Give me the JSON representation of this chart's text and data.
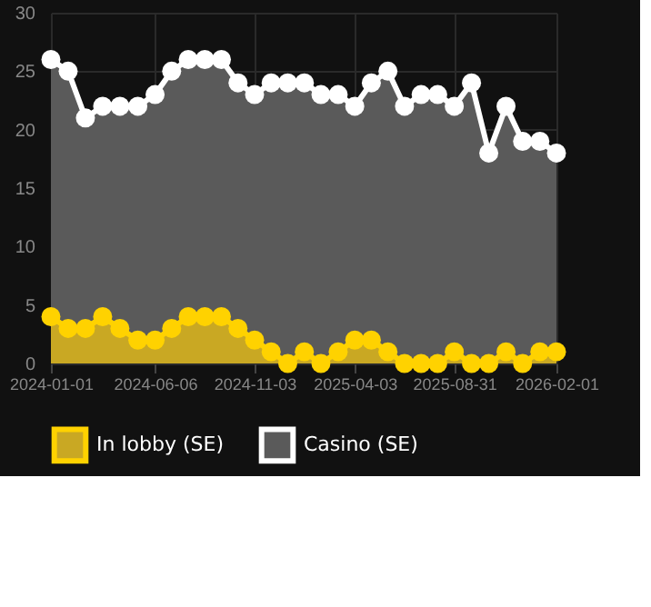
{
  "chart_data": {
    "type": "area",
    "x": [
      "2024-01-01",
      "2024-01-27",
      "2024-02-22",
      "2024-03-19",
      "2024-04-14",
      "2024-05-11",
      "2024-06-06",
      "2024-07-01",
      "2024-07-26",
      "2024-08-20",
      "2024-09-14",
      "2024-10-09",
      "2024-11-03",
      "2024-11-28",
      "2024-12-23",
      "2025-01-17",
      "2025-02-11",
      "2025-03-09",
      "2025-04-03",
      "2025-04-28",
      "2025-05-23",
      "2025-06-17",
      "2025-07-12",
      "2025-08-06",
      "2025-08-31",
      "2025-09-26",
      "2025-10-22",
      "2025-11-17",
      "2025-12-12",
      "2026-01-07",
      "2026-02-01"
    ],
    "series": [
      {
        "name": "In lobby (SE)",
        "color": "#ffd200",
        "values": [
          4,
          3,
          3,
          4,
          3,
          2,
          2,
          3,
          4,
          4,
          4,
          3,
          2,
          1,
          0,
          1,
          0,
          1,
          2,
          2,
          1,
          0,
          0,
          0,
          1,
          0,
          0,
          1,
          0,
          1,
          1
        ]
      },
      {
        "name": "Casino (SE)",
        "color": "#ffffff",
        "values": [
          26,
          25,
          21,
          22,
          22,
          22,
          23,
          25,
          26,
          26,
          26,
          24,
          23,
          24,
          24,
          24,
          23,
          23,
          22,
          24,
          25,
          22,
          23,
          23,
          22,
          24,
          18,
          22,
          19,
          19,
          18
        ]
      }
    ],
    "xlim": [
      "2024-01-01",
      "2026-02-01"
    ],
    "xticks": [
      "2024-01-01",
      "2024-06-06",
      "2024-11-03",
      "2025-04-03",
      "2025-08-31",
      "2026-02-01"
    ],
    "ylim": [
      0,
      30
    ],
    "yticks": [
      0,
      5,
      10,
      15,
      20,
      25,
      30
    ],
    "grid": true,
    "legend": "bottom",
    "marker": "circle",
    "line_style": "solid"
  }
}
